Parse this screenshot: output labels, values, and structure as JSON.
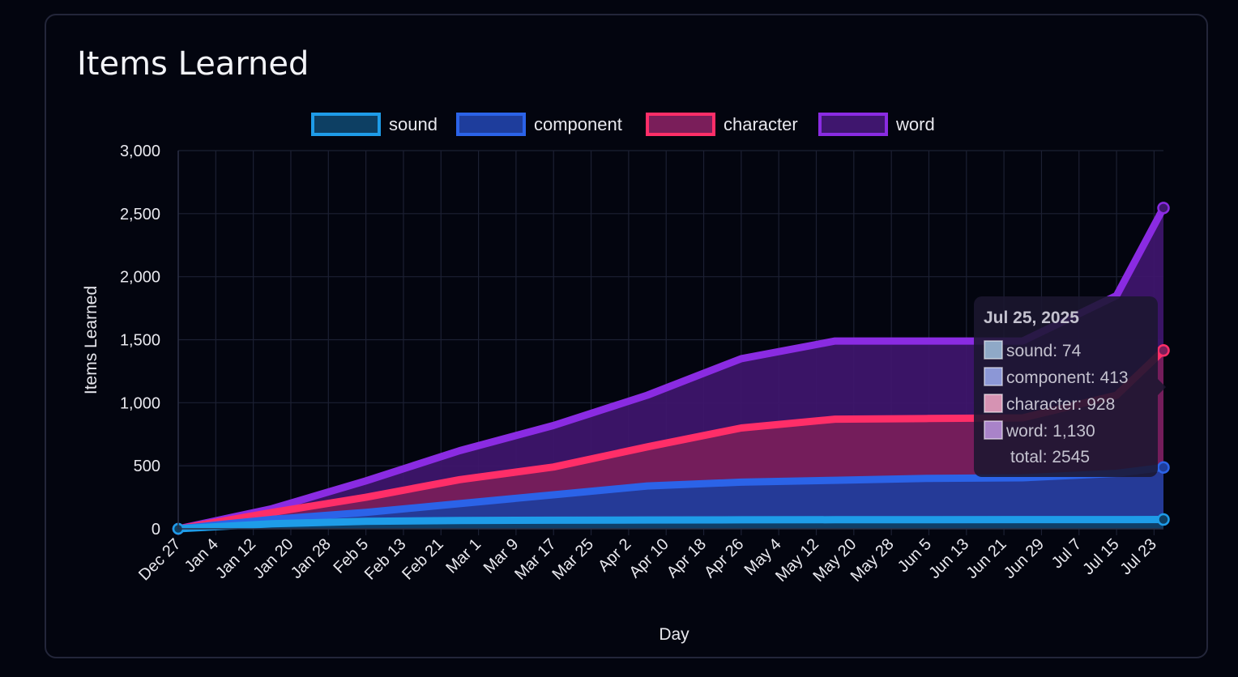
{
  "card": {
    "title": "Items Learned"
  },
  "chart_data": {
    "type": "area",
    "title": "Items Learned",
    "xlabel": "Day",
    "ylabel": "Items Learned",
    "ylim": [
      0,
      3000
    ],
    "stacked": true,
    "legend_position": "top",
    "y_ticks": [
      "0",
      "500",
      "1,000",
      "1,500",
      "2,000",
      "2,500",
      "3,000"
    ],
    "x_ticks": [
      "Dec 27",
      "Jan 4",
      "Jan 12",
      "Jan 20",
      "Jan 28",
      "Feb 5",
      "Feb 13",
      "Feb 21",
      "Mar 1",
      "Mar 9",
      "Mar 17",
      "Mar 25",
      "Apr 2",
      "Apr 10",
      "Apr 18",
      "Apr 26",
      "May 4",
      "May 12",
      "May 20",
      "May 28",
      "Jun 5",
      "Jun 13",
      "Jun 21",
      "Jun 29",
      "Jul 7",
      "Jul 15",
      "Jul 23"
    ],
    "x_day_offsets": [
      0,
      20,
      40,
      60,
      80,
      100,
      120,
      140,
      160,
      180,
      200,
      210
    ],
    "series": [
      {
        "name": "sound",
        "color": "#1e9ce8",
        "fill": "#0d3f63",
        "cumulative": [
          0,
          40,
          60,
          66,
          68,
          70,
          71,
          72,
          72,
          73,
          73,
          74
        ]
      },
      {
        "name": "component",
        "color": "#2b63e8",
        "fill": "#1e3d9c",
        "cumulative": [
          0,
          75,
          130,
          200,
          270,
          340,
          370,
          385,
          400,
          405,
          440,
          487
        ]
      },
      {
        "name": "character",
        "color": "#ff2e68",
        "fill": "#7a1e5a",
        "cumulative": [
          0,
          130,
          250,
          390,
          490,
          650,
          800,
          870,
          875,
          880,
          1060,
          1415
        ]
      },
      {
        "name": "word",
        "color": "#8a2be2",
        "fill": "#3f166e",
        "cumulative": [
          0,
          160,
          380,
          620,
          820,
          1060,
          1350,
          1490,
          1490,
          1490,
          1850,
          2545
        ]
      }
    ],
    "tooltip": {
      "date": "Jul 25, 2025",
      "lines": [
        {
          "label": "sound: 74",
          "swatch": "#8fa9c7"
        },
        {
          "label": "component: 413",
          "swatch": "#8c97d6"
        },
        {
          "label": "character: 928",
          "swatch": "#d693b3"
        },
        {
          "label": "word: 1,130",
          "swatch": "#a983c9"
        }
      ],
      "total": "total: 2545"
    }
  }
}
